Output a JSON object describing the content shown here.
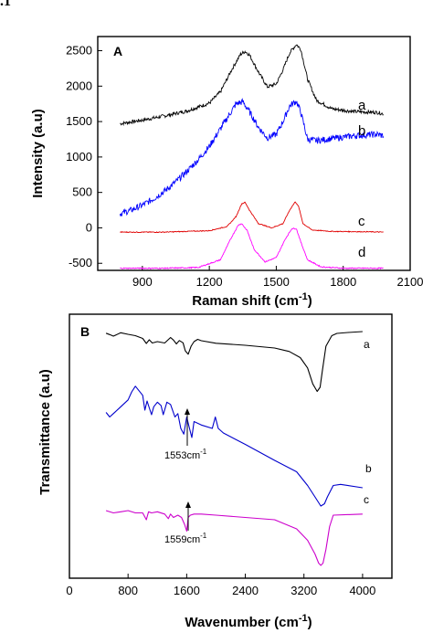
{
  "corner_text": ".1",
  "chart_data": [
    {
      "type": "line",
      "panel_label": "A",
      "xlabel": "Raman shift (cm",
      "xlabel_sup": "-1",
      "xlabel_end": ")",
      "ylabel": "Intensity (a.u)",
      "xlim": [
        700,
        2100
      ],
      "ylim": [
        -600,
        2700
      ],
      "xticks": [
        "900",
        "1200",
        "1500",
        "1800",
        "2100"
      ],
      "xtick_values": [
        900,
        1200,
        1500,
        1800,
        2100
      ],
      "yticks": [
        "2500",
        "2000",
        "1500",
        "1000",
        "500",
        "0",
        "-500"
      ],
      "ytick_values": [
        2500,
        2000,
        1500,
        1000,
        500,
        0,
        -500
      ],
      "series": [
        {
          "name": "a",
          "color": "#000000",
          "noise": 25,
          "x": [
            800,
            900,
            1000,
            1100,
            1200,
            1250,
            1300,
            1340,
            1360,
            1380,
            1420,
            1460,
            1500,
            1530,
            1560,
            1590,
            1610,
            1640,
            1680,
            1750,
            1850,
            1950,
            1980
          ],
          "y": [
            1470,
            1520,
            1580,
            1650,
            1760,
            1920,
            2230,
            2450,
            2490,
            2440,
            2200,
            1990,
            2030,
            2230,
            2470,
            2590,
            2520,
            2100,
            1800,
            1680,
            1640,
            1630,
            1610
          ]
        },
        {
          "name": "b",
          "color": "#0000ff",
          "noise": 45,
          "x": [
            800,
            850,
            900,
            950,
            1000,
            1050,
            1100,
            1150,
            1200,
            1240,
            1280,
            1320,
            1350,
            1380,
            1420,
            1460,
            1500,
            1530,
            1560,
            1590,
            1610,
            1640,
            1680,
            1750,
            1850,
            1950,
            1980
          ],
          "y": [
            200,
            250,
            320,
            410,
            520,
            650,
            800,
            960,
            1150,
            1350,
            1550,
            1750,
            1780,
            1640,
            1420,
            1270,
            1320,
            1500,
            1720,
            1790,
            1630,
            1250,
            1230,
            1260,
            1300,
            1320,
            1300
          ]
        },
        {
          "name": "c",
          "color": "#e00000",
          "noise": 6,
          "x": [
            800,
            1000,
            1200,
            1280,
            1320,
            1345,
            1360,
            1380,
            1420,
            1480,
            1530,
            1560,
            1585,
            1600,
            1620,
            1660,
            1750,
            1900,
            1980
          ],
          "y": [
            -60,
            -60,
            -40,
            20,
            160,
            340,
            360,
            250,
            60,
            0,
            60,
            250,
            370,
            300,
            60,
            -30,
            -50,
            -55,
            -60
          ]
        },
        {
          "name": "d",
          "color": "#ff00ff",
          "noise": 8,
          "x": [
            800,
            1000,
            1150,
            1250,
            1300,
            1330,
            1345,
            1370,
            1400,
            1450,
            1500,
            1540,
            1570,
            1590,
            1610,
            1640,
            1700,
            1800,
            1980
          ],
          "y": [
            -570,
            -570,
            -560,
            -450,
            -130,
            40,
            60,
            -40,
            -300,
            -480,
            -420,
            -160,
            -10,
            -10,
            -200,
            -450,
            -550,
            -570,
            -570
          ]
        }
      ],
      "curve_labels": [
        "a",
        "b",
        "c",
        "d"
      ]
    },
    {
      "type": "line",
      "panel_label": "B",
      "xlabel": "Wavenumber (cm",
      "xlabel_sup": "-1",
      "xlabel_end": ")",
      "ylabel": "Transmittance (a.u)",
      "xlim": [
        0,
        4400
      ],
      "xticks": [
        "0",
        "800",
        "1600",
        "2400",
        "3200",
        "4000"
      ],
      "xtick_values": [
        0,
        800,
        1600,
        2400,
        3200,
        4000
      ],
      "series": [
        {
          "name": "a",
          "color": "#000000",
          "x": [
            500,
            550,
            600,
            700,
            800,
            900,
            1000,
            1050,
            1090,
            1130,
            1200,
            1300,
            1380,
            1420,
            1460,
            1500,
            1550,
            1580,
            1620,
            1660,
            1700,
            1750,
            1800,
            2000,
            2400,
            2800,
            3000,
            3150,
            3250,
            3320,
            3380,
            3420,
            3450,
            3500,
            3580,
            3650,
            3800,
            4000
          ],
          "y": [
            0.3,
            0.9,
            1.6,
            0.1,
            0.8,
            1.4,
            2.6,
            4.8,
            3.2,
            4.6,
            4.0,
            4.6,
            2.2,
            3.3,
            5.0,
            3.5,
            4.5,
            8.0,
            9.5,
            6.0,
            4.0,
            3.0,
            3.6,
            4.7,
            5.6,
            6.8,
            8.3,
            11.0,
            15.5,
            22.5,
            25.8,
            24.0,
            17.0,
            6.0,
            1.4,
            0.4,
            0.0,
            -0.4
          ]
        },
        {
          "name": "b",
          "color": "#0000cc",
          "x": [
            500,
            550,
            600,
            700,
            800,
            850,
            900,
            950,
            1000,
            1030,
            1060,
            1090,
            1120,
            1150,
            1200,
            1250,
            1280,
            1330,
            1380,
            1440,
            1480,
            1520,
            1560,
            1600,
            1630,
            1670,
            1700,
            1800,
            1950,
            1990,
            2030,
            2100,
            2400,
            2800,
            3100,
            3250,
            3350,
            3430,
            3480,
            3520,
            3600,
            3700,
            4000
          ],
          "y": [
            35,
            37,
            35.5,
            32.5,
            29.5,
            26,
            23.5,
            25.5,
            27.5,
            34,
            30,
            33,
            36,
            32.5,
            30.5,
            32,
            36,
            30.5,
            31.5,
            37,
            35.5,
            42,
            44.5,
            37,
            41,
            46,
            39,
            40.5,
            42,
            37,
            42,
            44,
            49,
            56,
            61,
            67,
            72,
            76,
            75,
            72,
            67,
            66.5,
            68
          ]
        },
        {
          "name": "c",
          "color": "#cc00cc",
          "x": [
            500,
            600,
            700,
            800,
            900,
            1000,
            1050,
            1080,
            1120,
            1200,
            1300,
            1350,
            1380,
            1420,
            1480,
            1530,
            1570,
            1600,
            1620,
            1650,
            1700,
            1800,
            2000,
            2400,
            2800,
            3100,
            3250,
            3350,
            3400,
            3430,
            3460,
            3500,
            3550,
            3600,
            4000
          ],
          "y": [
            78,
            79,
            78.5,
            78,
            79,
            79,
            82,
            78.5,
            79,
            78.5,
            79.5,
            81.5,
            79.5,
            81,
            80,
            81,
            84,
            87,
            81,
            80,
            79.5,
            79.5,
            80,
            81,
            82,
            86,
            91,
            97,
            101,
            102,
            101,
            95,
            85,
            80,
            79.5
          ]
        }
      ],
      "curve_labels": [
        "a",
        "b",
        "c"
      ],
      "annotations": [
        {
          "text": "1553cm",
          "sup": "-1"
        },
        {
          "text": "1559cm",
          "sup": "-1"
        }
      ]
    }
  ]
}
